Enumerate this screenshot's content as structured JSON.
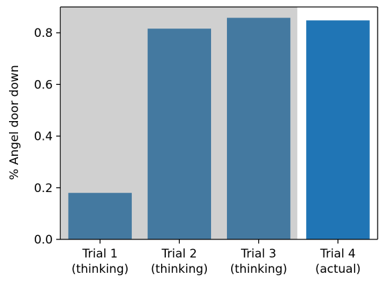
{
  "chart_data": {
    "type": "bar",
    "title": "",
    "xlabel": "",
    "ylabel": "% Angel door down",
    "categories": [
      [
        "Trial 1",
        "(thinking)"
      ],
      [
        "Trial 2",
        "(thinking)"
      ],
      [
        "Trial 3",
        "(thinking)"
      ],
      [
        "Trial 4",
        "(actual)"
      ]
    ],
    "values": [
      0.18,
      0.816,
      0.858,
      0.848
    ],
    "bar_colors": [
      "#4479a0",
      "#4479a0",
      "#4479a0",
      "#2075b5"
    ],
    "shaded_categories": [
      0,
      1,
      2
    ],
    "shade_color": "#d0d0d0",
    "ylim": [
      0,
      0.9
    ],
    "yticks": [
      0.0,
      0.2,
      0.4,
      0.6,
      0.8
    ],
    "ytick_labels": [
      "0.0",
      "0.2",
      "0.4",
      "0.6",
      "0.8"
    ],
    "grid": false,
    "legend": "none"
  }
}
